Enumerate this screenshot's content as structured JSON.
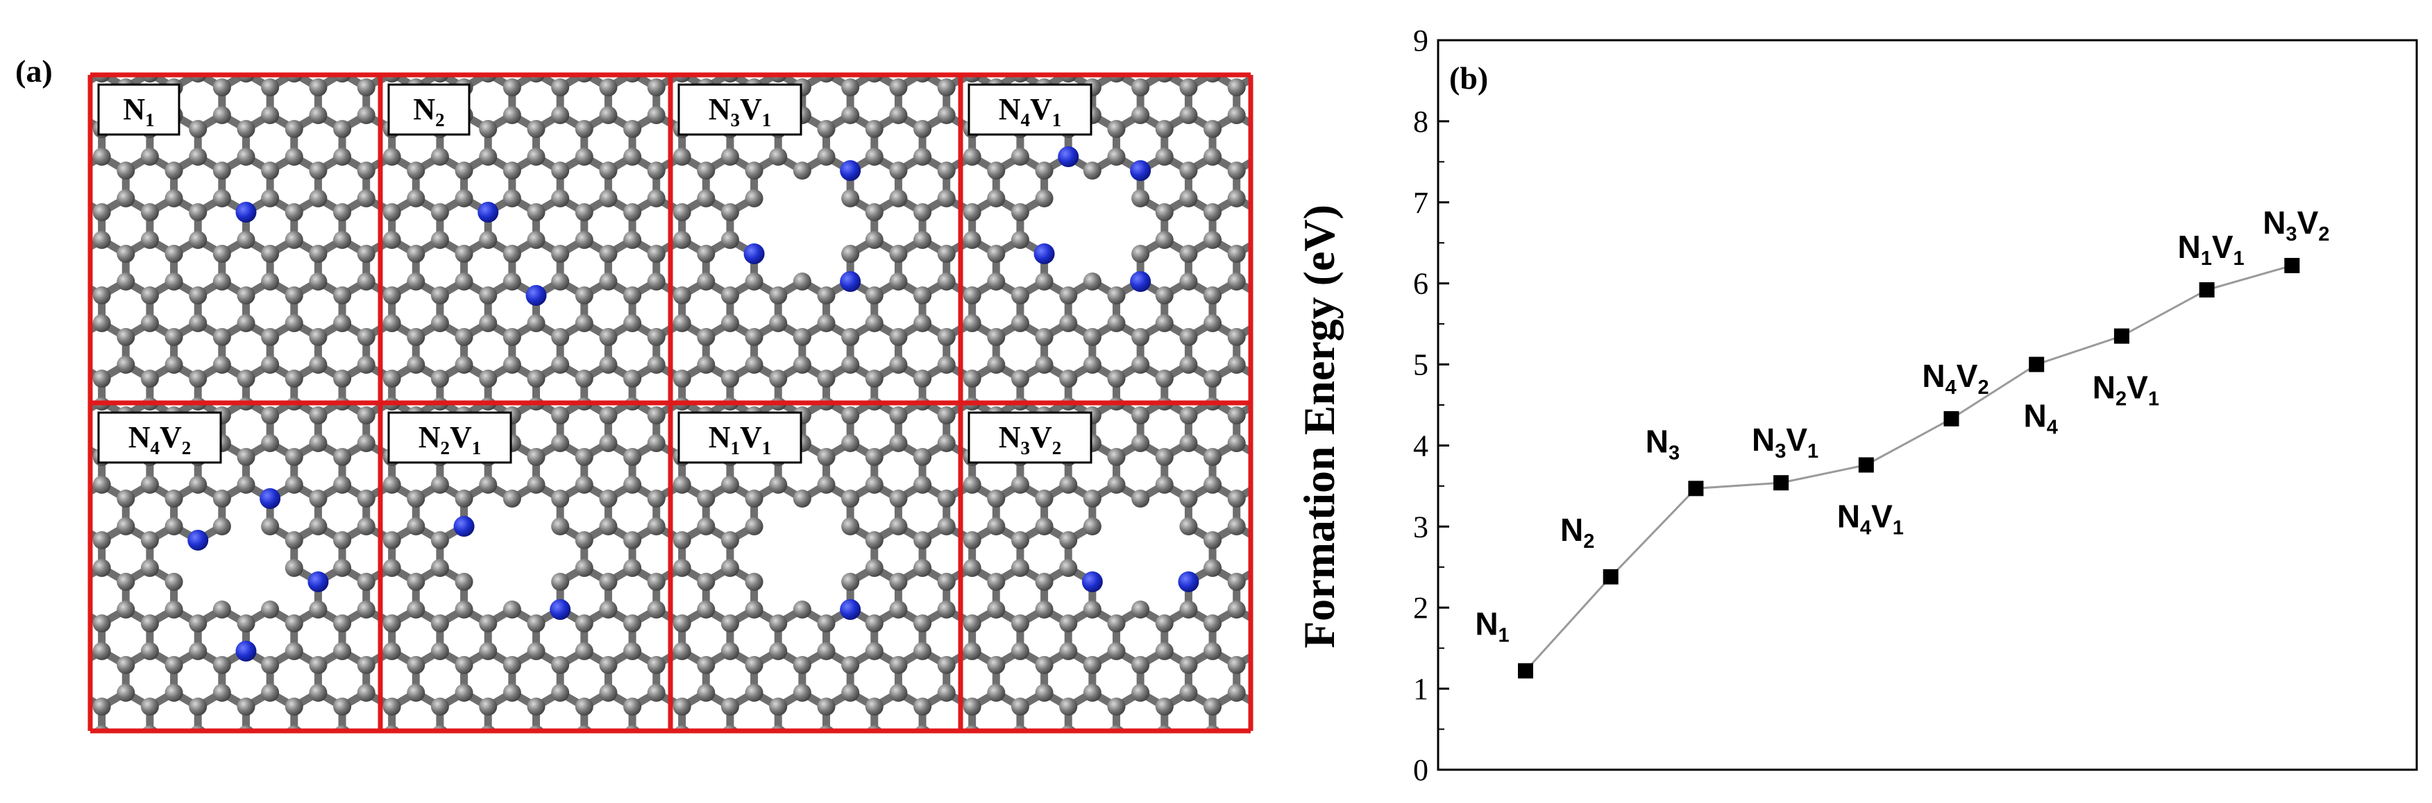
{
  "panel_a": {
    "label": "(a)",
    "structures": [
      {
        "base": "N",
        "n": "1"
      },
      {
        "base": "N",
        "n": "2"
      },
      {
        "base": "N",
        "n": "3",
        "base2": "V",
        "v": "1"
      },
      {
        "base": "N",
        "n": "4",
        "base2": "V",
        "v": "1"
      },
      {
        "base": "N",
        "n": "4",
        "base2": "V",
        "v": "2"
      },
      {
        "base": "N",
        "n": "2",
        "base2": "V",
        "v": "1"
      },
      {
        "base": "N",
        "n": "1",
        "base2": "V",
        "v": "1"
      },
      {
        "base": "N",
        "n": "3",
        "base2": "V",
        "v": "2"
      }
    ],
    "colors": {
      "frame": "#e0191b",
      "carbon": "#7a7a7a",
      "nitrogen": "#1e2fd0",
      "bond": "#6e6e6e"
    }
  },
  "panel_b": {
    "label": "(b)"
  },
  "chart_data": {
    "type": "line",
    "ylabel": "Formation Energy (eV)",
    "xlabel": "",
    "ylim": [
      0,
      9
    ],
    "yticks": [
      "0",
      "1",
      "2",
      "3",
      "4",
      "5",
      "6",
      "7",
      "8",
      "9"
    ],
    "grid": false,
    "line_color": "#9a9a9a",
    "marker_color": "#000000",
    "points": [
      {
        "base": "N",
        "n": "1",
        "y": 1.22,
        "label_pos": "upper-left"
      },
      {
        "base": "N",
        "n": "2",
        "y": 2.38,
        "label_pos": "upper-left"
      },
      {
        "base": "N",
        "n": "3",
        "y": 3.47,
        "label_pos": "upper-left"
      },
      {
        "base": "N",
        "n": "3",
        "base2": "V",
        "v": "1",
        "y": 3.54,
        "label_pos": "above"
      },
      {
        "base": "N",
        "n": "4",
        "base2": "V",
        "v": "1",
        "y": 3.76,
        "label_pos": "below"
      },
      {
        "base": "N",
        "n": "4",
        "base2": "V",
        "v": "2",
        "y": 4.33,
        "label_pos": "above"
      },
      {
        "base": "N",
        "n": "4",
        "y": 5.0,
        "label_pos": "below"
      },
      {
        "base": "N",
        "n": "2",
        "base2": "V",
        "v": "1",
        "y": 5.35,
        "label_pos": "below"
      },
      {
        "base": "N",
        "n": "1",
        "base2": "V",
        "v": "1",
        "y": 5.92,
        "label_pos": "above"
      },
      {
        "base": "N",
        "n": "3",
        "base2": "V",
        "v": "2",
        "y": 6.22,
        "label_pos": "above"
      }
    ]
  }
}
